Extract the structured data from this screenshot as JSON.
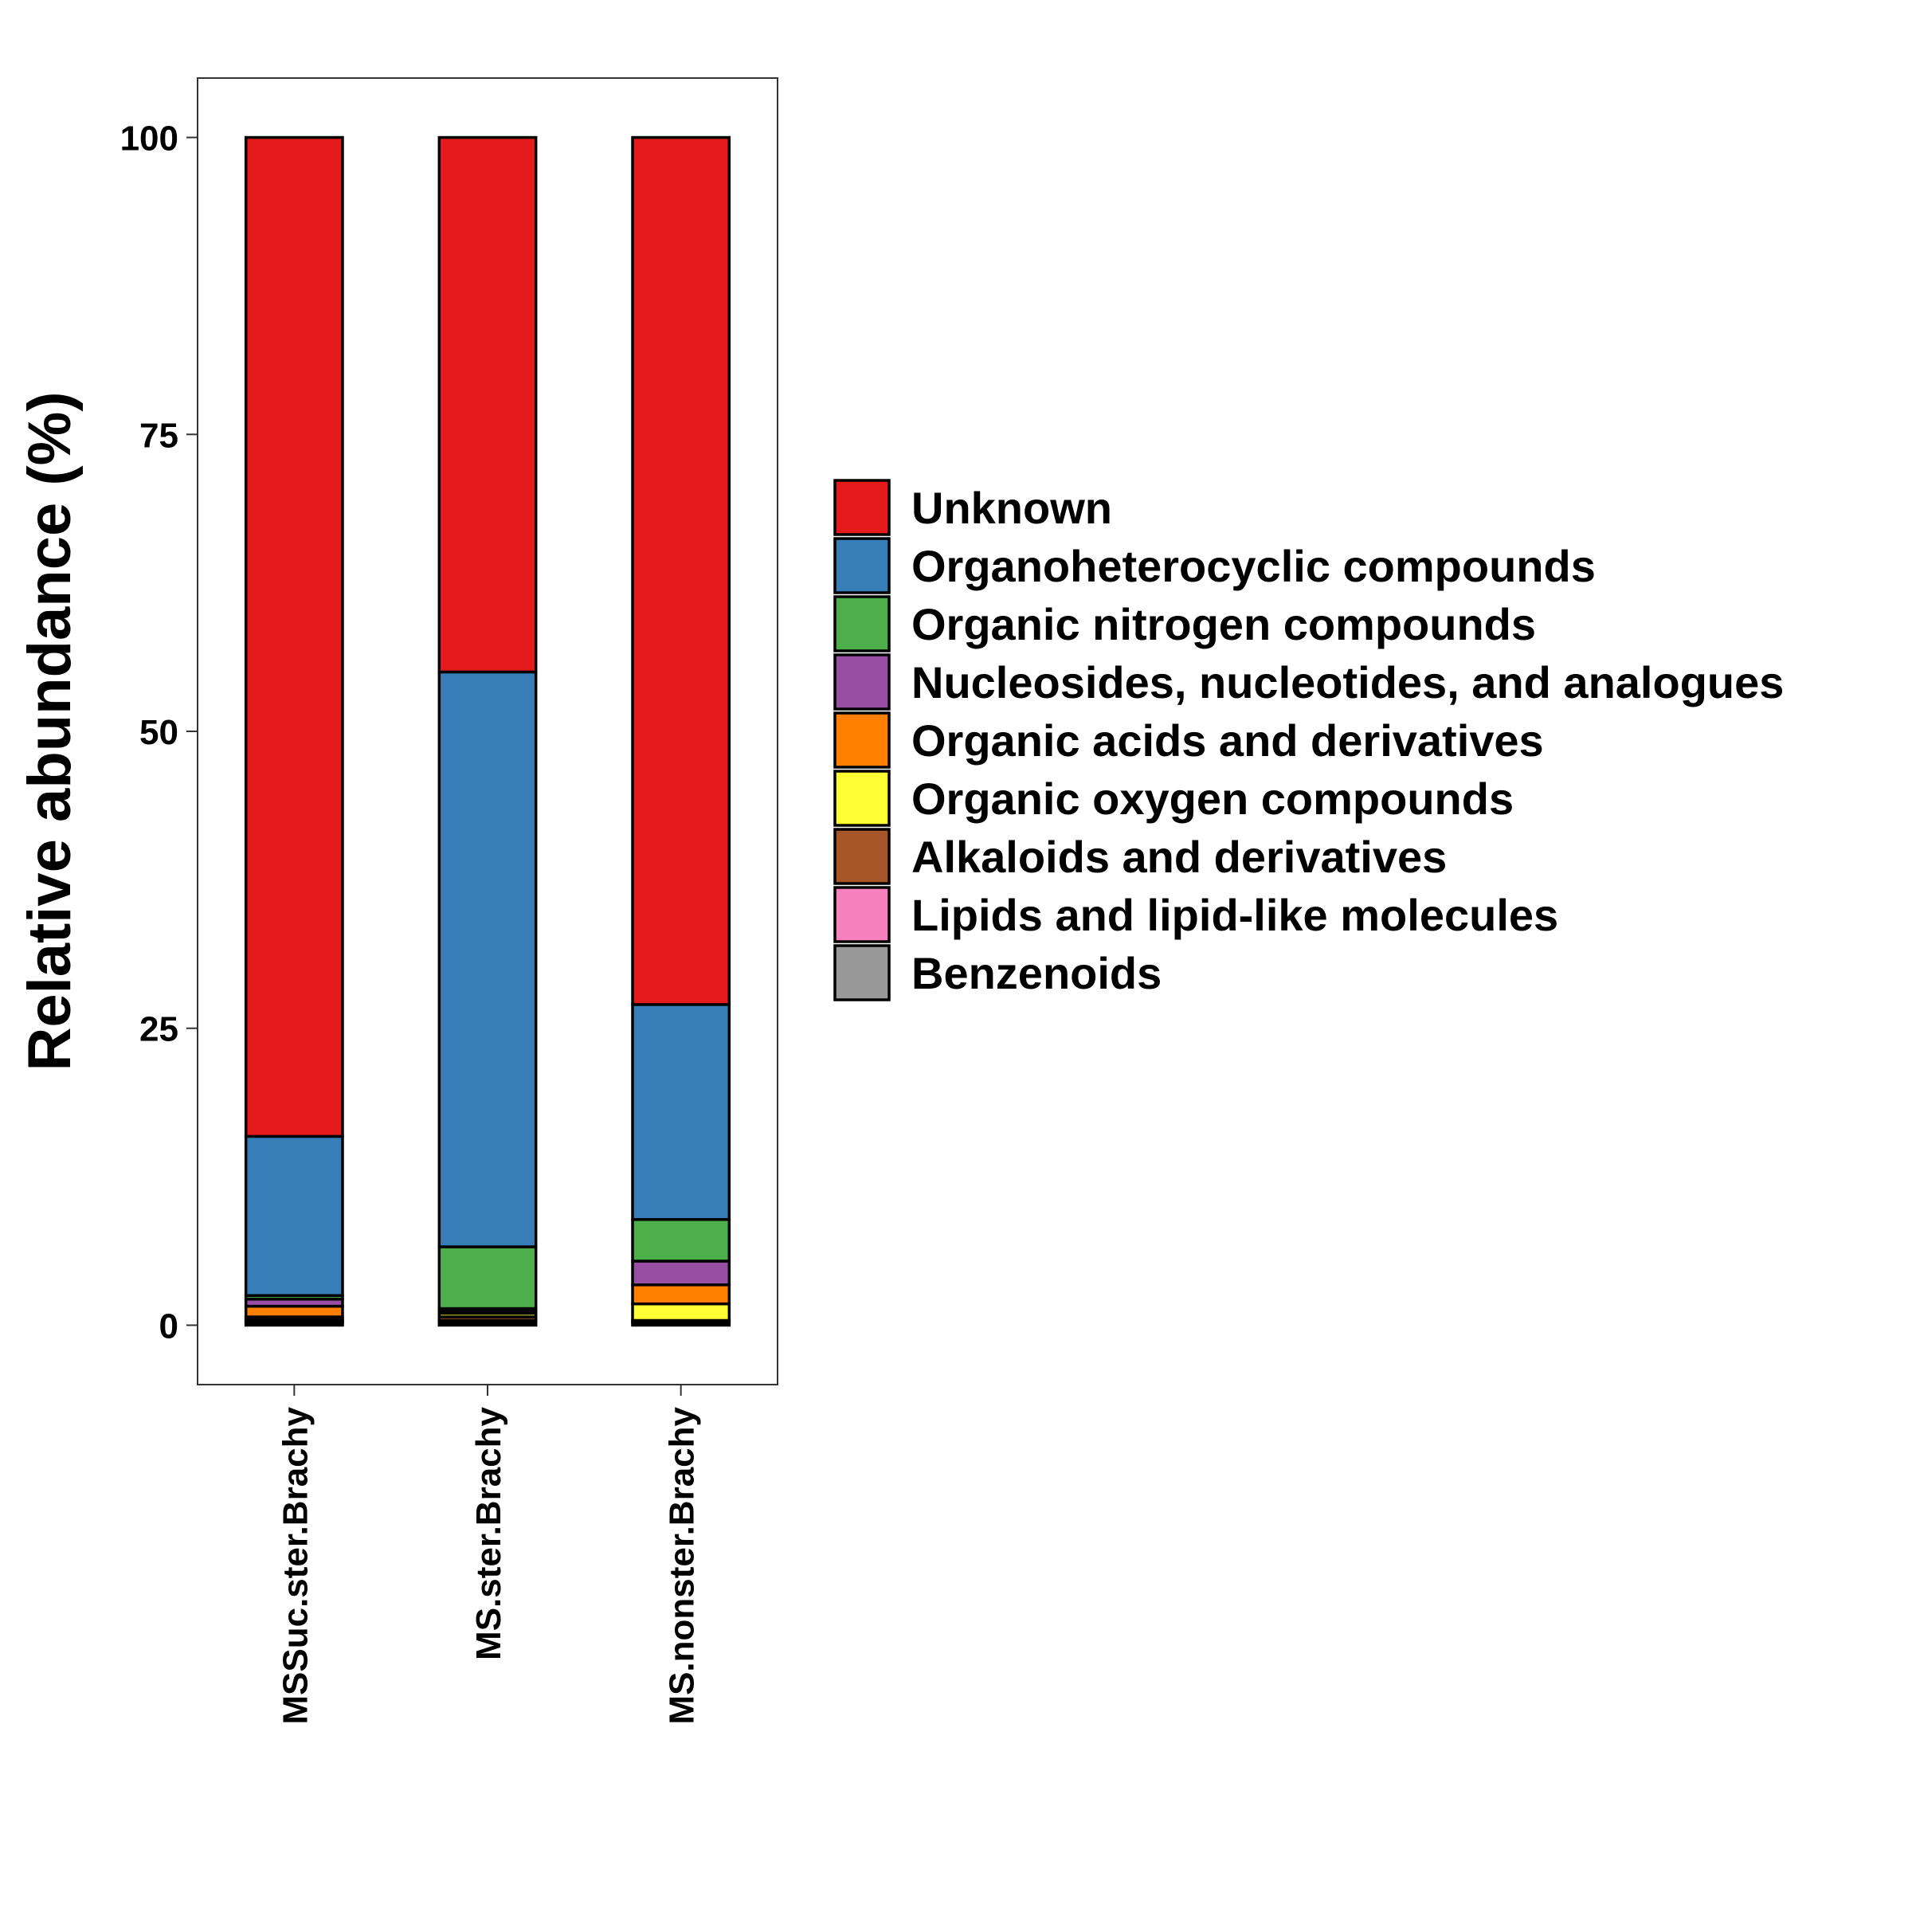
{
  "chart_data": {
    "type": "bar",
    "stacked": true,
    "ylabel": "Relative abundance (%)",
    "xlabel": "",
    "ylim": [
      -5,
      105
    ],
    "yticks": [
      0,
      25,
      50,
      75,
      100
    ],
    "grid": false,
    "legend_position": "right",
    "categories": [
      "MSSuc.ster.Brachy",
      "MS.ster.Brachy",
      "MS.nonster.Brachy"
    ],
    "series": [
      {
        "name": "Benzenoids",
        "color": "#999999",
        "values": [
          0.2,
          0.2,
          0.2
        ]
      },
      {
        "name": "Lipids and lipid-like molecules",
        "color": "#F781BF",
        "values": [
          0.1,
          0.2,
          0.1
        ]
      },
      {
        "name": "Alkaloids and derivatives",
        "color": "#A65628",
        "values": [
          0.2,
          0.3,
          0.1
        ]
      },
      {
        "name": "Organic oxygen compounds",
        "color": "#FFFF33",
        "values": [
          0.2,
          0.3,
          1.4
        ]
      },
      {
        "name": "Organic acids and derivatives",
        "color": "#FF7F00",
        "values": [
          0.9,
          0.2,
          1.6
        ]
      },
      {
        "name": "Nucleosides, nucleotides, and analogues",
        "color": "#984EA3",
        "values": [
          0.6,
          0.2,
          2.0
        ]
      },
      {
        "name": "Organic nitrogen compounds",
        "color": "#4DAF4A",
        "values": [
          0.3,
          5.2,
          3.5
        ]
      },
      {
        "name": "Organoheterocyclic compounds",
        "color": "#377EB8",
        "values": [
          13.4,
          48.4,
          18.1
        ]
      },
      {
        "name": "Unknown",
        "color": "#E41A1C",
        "values": [
          84.1,
          45.0,
          73.0
        ]
      }
    ],
    "legend_order": [
      "Unknown",
      "Organoheterocyclic compounds",
      "Organic nitrogen compounds",
      "Nucleosides, nucleotides, and analogues",
      "Organic acids and derivatives",
      "Organic oxygen compounds",
      "Alkaloids and derivatives",
      "Lipids and lipid-like molecules",
      "Benzenoids"
    ]
  }
}
